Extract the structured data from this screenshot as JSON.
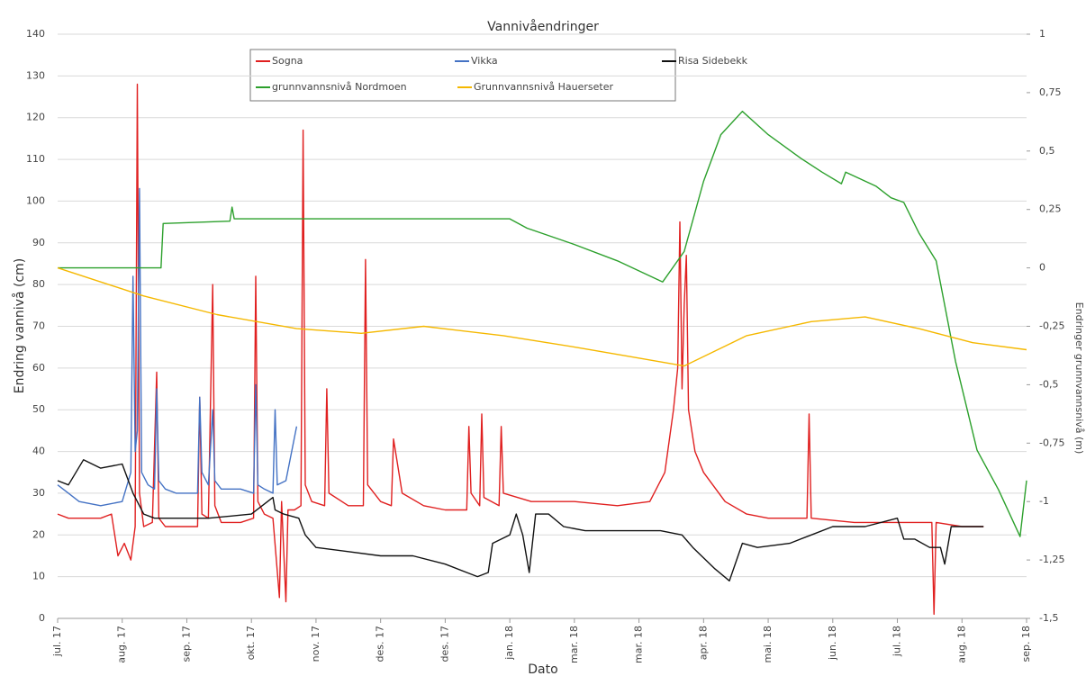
{
  "chart_data": {
    "type": "line",
    "title": "Vannivåendringer",
    "x_label": "Dato",
    "y_label": "Endring vannivå (cm)",
    "y2_label": "Endringer grunnvannsnivå (m)",
    "grid": true,
    "xlim": [
      0,
      450
    ],
    "xticks": [
      {
        "value": 0,
        "label": "jul. 17"
      },
      {
        "value": 30,
        "label": "aug. 17"
      },
      {
        "value": 60,
        "label": "sep. 17"
      },
      {
        "value": 90,
        "label": "okt. 17"
      },
      {
        "value": 120,
        "label": "nov. 17"
      },
      {
        "value": 150,
        "label": "des. 17"
      },
      {
        "value": 180,
        "label": "des. 17"
      },
      {
        "value": 210,
        "label": "jan. 18"
      },
      {
        "value": 240,
        "label": "mar. 18"
      },
      {
        "value": 270,
        "label": "mar. 18"
      },
      {
        "value": 300,
        "label": "apr. 18"
      },
      {
        "value": 330,
        "label": "mai. 18"
      },
      {
        "value": 360,
        "label": "jun. 18"
      },
      {
        "value": 390,
        "label": "jul. 18"
      },
      {
        "value": 420,
        "label": "aug. 18"
      },
      {
        "value": 450,
        "label": "sep. 18"
      }
    ],
    "ylim": [
      0,
      140
    ],
    "yticks": [
      0,
      10,
      20,
      30,
      40,
      50,
      60,
      70,
      80,
      90,
      100,
      110,
      120,
      130,
      140
    ],
    "y2lim": [
      -1.5,
      1
    ],
    "y2ticks": [
      {
        "value": 1,
        "label": "1"
      },
      {
        "value": 0.75,
        "label": "0,75"
      },
      {
        "value": 0.5,
        "label": "0,5"
      },
      {
        "value": 0.25,
        "label": "0,25"
      },
      {
        "value": 0,
        "label": "0"
      },
      {
        "value": -0.25,
        "label": "-0,25"
      },
      {
        "value": -0.5,
        "label": "-0,5"
      },
      {
        "value": -0.75,
        "label": "-0,75"
      },
      {
        "value": -1,
        "label": "-1"
      },
      {
        "value": -1.25,
        "label": "-1,25"
      },
      {
        "value": -1.5,
        "label": "-1,5"
      }
    ],
    "series": [
      {
        "name": "Sogna",
        "color": "#e02020",
        "x": [
          0,
          5,
          10,
          20,
          25,
          28,
          31,
          34,
          36,
          37,
          38,
          40,
          44,
          46,
          47,
          50,
          60,
          65,
          66,
          67,
          70,
          72,
          73,
          76,
          85,
          91,
          92,
          93,
          96,
          100,
          103,
          104,
          106,
          107,
          110,
          113,
          114,
          115,
          118,
          124,
          125,
          126,
          135,
          142,
          143,
          144,
          150,
          155,
          156,
          160,
          170,
          180,
          190,
          191,
          192,
          196,
          197,
          198,
          205,
          206,
          207,
          220,
          240,
          260,
          275,
          282,
          286,
          288,
          289,
          290,
          291,
          292,
          293,
          296,
          300,
          310,
          320,
          330,
          348,
          349,
          350,
          370,
          390,
          400,
          406,
          407,
          408,
          420,
          430
        ],
        "values": [
          25,
          24,
          24,
          24,
          25,
          15,
          18,
          14,
          22,
          128,
          30,
          22,
          23,
          59,
          24,
          22,
          22,
          22,
          53,
          25,
          24,
          80,
          27,
          23,
          23,
          24,
          82,
          28,
          25,
          24,
          5,
          28,
          4,
          26,
          26,
          27,
          117,
          32,
          28,
          27,
          55,
          30,
          27,
          27,
          86,
          32,
          28,
          27,
          43,
          30,
          27,
          26,
          26,
          46,
          30,
          27,
          49,
          29,
          27,
          46,
          30,
          28,
          28,
          27,
          28,
          35,
          50,
          60,
          95,
          55,
          75,
          87,
          50,
          40,
          35,
          28,
          25,
          24,
          24,
          49,
          24,
          23,
          23,
          23,
          23,
          1,
          23,
          22,
          22
        ]
      },
      {
        "name": "Vikka",
        "color": "#4472c4",
        "x": [
          0,
          5,
          10,
          20,
          30,
          34,
          35,
          36,
          37,
          38,
          39,
          42,
          45,
          46,
          47,
          50,
          55,
          60,
          65,
          66,
          67,
          70,
          72,
          73,
          76,
          85,
          91,
          92,
          93,
          96,
          100,
          101,
          102,
          106,
          111
        ],
        "values": [
          32,
          30,
          28,
          27,
          28,
          35,
          82,
          40,
          45,
          103,
          35,
          32,
          31,
          55,
          33,
          31,
          30,
          30,
          30,
          53,
          35,
          32,
          50,
          33,
          31,
          31,
          30,
          56,
          32,
          31,
          30,
          50,
          32,
          33,
          46
        ]
      },
      {
        "name": "Risa Sidebekk",
        "color": "#111111",
        "x": [
          0,
          5,
          12,
          20,
          30,
          35,
          40,
          45,
          55,
          70,
          90,
          100,
          101,
          105,
          112,
          115,
          120,
          135,
          150,
          165,
          180,
          190,
          195,
          200,
          202,
          210,
          213,
          216,
          219,
          222,
          228,
          235,
          245,
          260,
          280,
          290,
          295,
          305,
          312,
          318,
          325,
          340,
          350,
          360,
          375,
          390,
          393,
          398,
          405,
          410,
          412,
          415,
          430
        ],
        "values": [
          33,
          32,
          38,
          36,
          37,
          30,
          25,
          24,
          24,
          24,
          25,
          29,
          26,
          25,
          24,
          20,
          17,
          16,
          15,
          15,
          13,
          11,
          10,
          11,
          18,
          20,
          25,
          20,
          11,
          25,
          25,
          22,
          21,
          21,
          21,
          20,
          17,
          12,
          9,
          18,
          17,
          18,
          20,
          22,
          22,
          24,
          19,
          19,
          17,
          17,
          13,
          22,
          22
        ]
      },
      {
        "name": "grunnvannsnivå Nordmoen",
        "color": "#2ca02c",
        "axis": "y2",
        "x": [
          0,
          48,
          49,
          80,
          81,
          82,
          100,
          150,
          210,
          218,
          240,
          260,
          281,
          291,
          300,
          308,
          318,
          330,
          345,
          355,
          364,
          366,
          380,
          387,
          393,
          400,
          408,
          417,
          427,
          437,
          447,
          450
        ],
        "values": [
          0,
          0,
          0.19,
          0.2,
          0.26,
          0.21,
          0.21,
          0.21,
          0.21,
          0.17,
          0.1,
          0.03,
          -0.06,
          0.07,
          0.37,
          0.57,
          0.67,
          0.57,
          0.47,
          0.41,
          0.36,
          0.41,
          0.35,
          0.3,
          0.28,
          0.15,
          0.03,
          -0.4,
          -0.78,
          -0.95,
          -1.15,
          -0.91
        ]
      },
      {
        "name": "Grunnvannsnivå Hauerseter",
        "color": "#f5b800",
        "axis": "y2",
        "x": [
          0,
          40,
          74,
          111,
          141,
          170,
          207,
          241,
          266,
          291,
          320,
          350,
          375,
          400,
          425,
          450
        ],
        "values": [
          0,
          -0.12,
          -0.2,
          -0.26,
          -0.28,
          -0.25,
          -0.29,
          -0.34,
          -0.38,
          -0.42,
          -0.29,
          -0.23,
          -0.21,
          -0.26,
          -0.32,
          -0.35
        ]
      }
    ]
  }
}
